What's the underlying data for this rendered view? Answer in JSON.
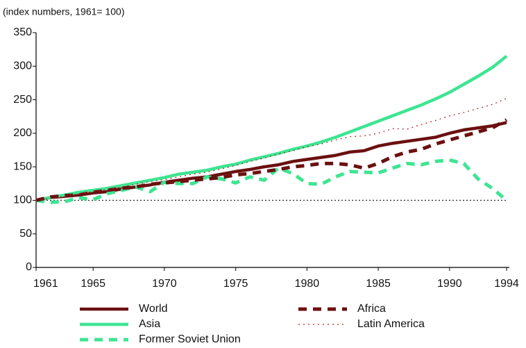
{
  "chart_data": {
    "type": "line",
    "subtitle": "(index numbers, 1961= 100)",
    "x": [
      1961,
      1962,
      1963,
      1964,
      1965,
      1966,
      1967,
      1968,
      1969,
      1970,
      1971,
      1972,
      1973,
      1974,
      1975,
      1976,
      1977,
      1978,
      1979,
      1980,
      1981,
      1982,
      1983,
      1984,
      1985,
      1986,
      1987,
      1988,
      1989,
      1990,
      1991,
      1992,
      1993,
      1994
    ],
    "xlim": [
      1961,
      1994
    ],
    "xticks": [
      1961,
      1965,
      1970,
      1975,
      1980,
      1985,
      1990,
      1994
    ],
    "ylim": [
      0,
      350
    ],
    "yticks": [
      0,
      50,
      100,
      150,
      200,
      250,
      300,
      350
    ],
    "reference_line": 100,
    "series": [
      {
        "name": "World",
        "color": "#6b1010",
        "style": "solid",
        "values": [
          100,
          104,
          106,
          108,
          111,
          113,
          117,
          120,
          123,
          127,
          130,
          133,
          135,
          139,
          143,
          146,
          150,
          153,
          158,
          161,
          164,
          167,
          172,
          174,
          181,
          185,
          188,
          191,
          194,
          200,
          205,
          208,
          211,
          216
        ]
      },
      {
        "name": "Asia",
        "color": "#3de592",
        "style": "solid",
        "values": [
          100,
          104,
          108,
          112,
          115,
          118,
          122,
          126,
          130,
          134,
          139,
          142,
          145,
          150,
          154,
          160,
          165,
          170,
          176,
          181,
          187,
          194,
          202,
          210,
          218,
          226,
          234,
          242,
          251,
          261,
          273,
          285,
          298,
          315
        ]
      },
      {
        "name": "Former Soviet Union",
        "color": "#3de592",
        "style": "dashed",
        "values": [
          100,
          97,
          98,
          104,
          101,
          110,
          115,
          120,
          113,
          127,
          125,
          125,
          135,
          132,
          126,
          135,
          130,
          148,
          140,
          125,
          124,
          135,
          143,
          142,
          141,
          148,
          155,
          153,
          158,
          160,
          155,
          132,
          118,
          100
        ]
      },
      {
        "name": "Africa",
        "color": "#6b1010",
        "style": "dashed",
        "values": [
          100,
          105,
          107,
          108,
          112,
          115,
          118,
          120,
          124,
          126,
          128,
          130,
          132,
          134,
          138,
          140,
          143,
          146,
          150,
          152,
          155,
          155,
          153,
          148,
          155,
          165,
          172,
          176,
          184,
          190,
          196,
          202,
          208,
          220
        ]
      },
      {
        "name": "Latin America",
        "color": "#b02020",
        "style": "dotted",
        "values": [
          100,
          103,
          106,
          110,
          113,
          116,
          120,
          124,
          128,
          131,
          135,
          139,
          142,
          147,
          152,
          158,
          163,
          169,
          174,
          180,
          184,
          190,
          195,
          196,
          200,
          207,
          206,
          213,
          219,
          226,
          231,
          237,
          243,
          252
        ]
      }
    ]
  }
}
